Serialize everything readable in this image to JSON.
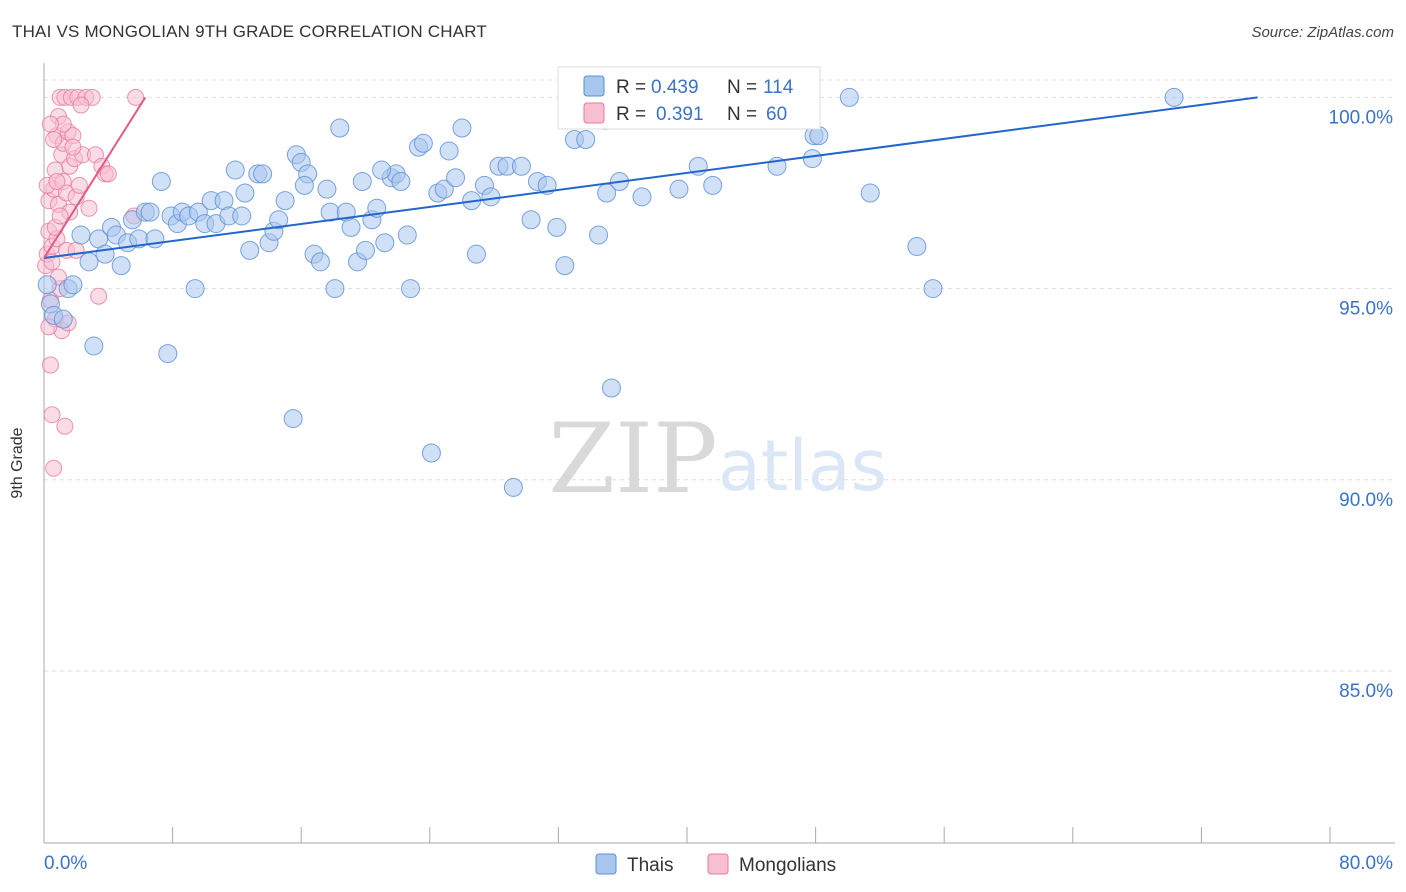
{
  "header": {
    "title": "THAI VS MONGOLIAN 9TH GRADE CORRELATION CHART",
    "source": "Source: ZipAtlas.com"
  },
  "watermark": {
    "zip": "ZIP",
    "atlas": "atlas"
  },
  "colors": {
    "thais": "#5b8fd6",
    "thais_fill": "#a9c6ee",
    "thais_line": "#2266cc",
    "mongolians": "#e87aa0",
    "mongolians_fill": "#f6bfd2",
    "mongolians_line": "#e05a8a",
    "tick_label": "#3a72c8",
    "grid": "#dddddd"
  },
  "legend_top": [
    {
      "r_label": "R = ",
      "r_value": "0.439",
      "n_label": "N = ",
      "n_value": "114"
    },
    {
      "r_label": "R = ",
      "r_value": "0.391",
      "n_label": "N = ",
      "n_value": "60"
    }
  ],
  "chart_data": {
    "type": "scatter",
    "title": "THAI VS MONGOLIAN 9TH GRADE CORRELATION CHART",
    "xlabel": "",
    "ylabel": "9th Grade",
    "xlim": [
      0,
      80
    ],
    "ylim": [
      80.5,
      100.9
    ],
    "x_tick_labels": [
      "0.0%",
      "80.0%"
    ],
    "y_ticks": [
      85,
      90,
      95,
      100
    ],
    "y_tick_labels": [
      "85.0%",
      "90.0%",
      "95.0%",
      "100.0%"
    ],
    "grid": true,
    "legend_position": "bottom-center",
    "series": [
      {
        "name": "Thais",
        "R": 0.439,
        "N": 114,
        "trend": {
          "x": [
            0,
            75.5
          ],
          "y": [
            95.8,
            100.0
          ]
        },
        "points": [
          [
            0.2,
            95.1
          ],
          [
            0.4,
            94.6
          ],
          [
            0.6,
            94.3
          ],
          [
            1.2,
            94.2
          ],
          [
            1.5,
            95.0
          ],
          [
            1.8,
            95.1
          ],
          [
            2.3,
            96.4
          ],
          [
            2.8,
            95.7
          ],
          [
            3.1,
            93.5
          ],
          [
            3.4,
            96.3
          ],
          [
            3.8,
            95.9
          ],
          [
            4.2,
            96.6
          ],
          [
            4.5,
            96.4
          ],
          [
            4.8,
            95.6
          ],
          [
            5.2,
            96.2
          ],
          [
            5.5,
            96.8
          ],
          [
            5.9,
            96.3
          ],
          [
            6.3,
            97.0
          ],
          [
            6.6,
            97.0
          ],
          [
            6.9,
            96.3
          ],
          [
            7.3,
            97.8
          ],
          [
            7.7,
            93.3
          ],
          [
            7.9,
            96.9
          ],
          [
            8.3,
            96.7
          ],
          [
            8.6,
            97.0
          ],
          [
            9.0,
            96.9
          ],
          [
            9.4,
            95.0
          ],
          [
            9.6,
            97.0
          ],
          [
            10.0,
            96.7
          ],
          [
            10.4,
            97.3
          ],
          [
            10.7,
            96.7
          ],
          [
            11.2,
            97.3
          ],
          [
            11.5,
            96.9
          ],
          [
            11.9,
            98.1
          ],
          [
            12.3,
            96.9
          ],
          [
            12.5,
            97.5
          ],
          [
            12.8,
            96.0
          ],
          [
            13.3,
            98.0
          ],
          [
            13.6,
            98.0
          ],
          [
            14.0,
            96.2
          ],
          [
            14.3,
            96.5
          ],
          [
            14.6,
            96.8
          ],
          [
            15.0,
            97.3
          ],
          [
            15.5,
            91.6
          ],
          [
            15.7,
            98.5
          ],
          [
            16.0,
            98.3
          ],
          [
            16.4,
            98.0
          ],
          [
            16.8,
            95.9
          ],
          [
            17.2,
            95.7
          ],
          [
            17.6,
            97.6
          ],
          [
            17.8,
            97.0
          ],
          [
            18.1,
            95.0
          ],
          [
            18.4,
            99.2
          ],
          [
            18.8,
            97.0
          ],
          [
            19.1,
            96.6
          ],
          [
            19.5,
            95.7
          ],
          [
            19.8,
            97.8
          ],
          [
            20.0,
            96.0
          ],
          [
            20.4,
            96.8
          ],
          [
            20.7,
            97.1
          ],
          [
            21.2,
            96.2
          ],
          [
            21.6,
            97.9
          ],
          [
            21.9,
            98.0
          ],
          [
            22.2,
            97.8
          ],
          [
            22.6,
            96.4
          ],
          [
            22.8,
            95.0
          ],
          [
            23.3,
            98.7
          ],
          [
            23.6,
            98.8
          ],
          [
            24.1,
            90.7
          ],
          [
            24.5,
            97.5
          ],
          [
            24.9,
            97.6
          ],
          [
            25.2,
            98.6
          ],
          [
            25.6,
            97.9
          ],
          [
            26.0,
            99.2
          ],
          [
            26.6,
            97.3
          ],
          [
            26.9,
            95.9
          ],
          [
            27.4,
            97.7
          ],
          [
            27.8,
            97.4
          ],
          [
            28.3,
            98.2
          ],
          [
            28.8,
            98.2
          ],
          [
            29.2,
            89.8
          ],
          [
            29.7,
            98.2
          ],
          [
            30.3,
            96.8
          ],
          [
            30.7,
            97.8
          ],
          [
            31.3,
            97.7
          ],
          [
            31.9,
            96.6
          ],
          [
            32.4,
            95.6
          ],
          [
            33.0,
            98.9
          ],
          [
            33.7,
            98.9
          ],
          [
            34.5,
            96.4
          ],
          [
            34.9,
            99.4
          ],
          [
            35.3,
            92.4
          ],
          [
            35.8,
            97.8
          ],
          [
            36.4,
            100.0
          ],
          [
            37.2,
            97.4
          ],
          [
            37.9,
            100.0
          ],
          [
            38.6,
            99.6
          ],
          [
            39.5,
            97.6
          ],
          [
            40.7,
            98.2
          ],
          [
            41.6,
            97.7
          ],
          [
            44.3,
            100.0
          ],
          [
            45.6,
            98.2
          ],
          [
            47.4,
            100.0
          ],
          [
            47.8,
            98.4
          ],
          [
            47.9,
            99.0
          ],
          [
            48.2,
            99.0
          ],
          [
            50.1,
            100.0
          ],
          [
            51.4,
            97.5
          ],
          [
            54.3,
            96.1
          ],
          [
            55.3,
            95.0
          ],
          [
            70.3,
            100.0
          ],
          [
            35.0,
            97.5
          ],
          [
            21.0,
            98.1
          ],
          [
            16.2,
            97.7
          ]
        ]
      },
      {
        "name": "Mongolians",
        "R": 0.391,
        "N": 60,
        "trend": {
          "x": [
            0,
            6.3
          ],
          "y": [
            95.8,
            100.0
          ]
        },
        "points": [
          [
            0.1,
            95.6
          ],
          [
            0.2,
            95.9
          ],
          [
            0.3,
            96.5
          ],
          [
            0.3,
            97.3
          ],
          [
            0.4,
            93.0
          ],
          [
            0.4,
            94.7
          ],
          [
            0.5,
            96.1
          ],
          [
            0.5,
            91.7
          ],
          [
            0.6,
            97.6
          ],
          [
            0.6,
            90.3
          ],
          [
            0.7,
            98.1
          ],
          [
            0.7,
            94.2
          ],
          [
            0.8,
            99.0
          ],
          [
            0.8,
            96.3
          ],
          [
            0.9,
            99.5
          ],
          [
            0.9,
            97.2
          ],
          [
            1.0,
            100.0
          ],
          [
            1.0,
            95.0
          ],
          [
            1.1,
            98.5
          ],
          [
            1.1,
            93.9
          ],
          [
            1.2,
            97.8
          ],
          [
            1.2,
            98.8
          ],
          [
            1.3,
            100.0
          ],
          [
            1.3,
            91.4
          ],
          [
            1.4,
            97.5
          ],
          [
            1.4,
            96.0
          ],
          [
            1.5,
            99.1
          ],
          [
            1.6,
            98.2
          ],
          [
            1.6,
            97.0
          ],
          [
            1.7,
            100.0
          ],
          [
            1.8,
            99.0
          ],
          [
            1.9,
            98.4
          ],
          [
            2.0,
            97.4
          ],
          [
            2.1,
            100.0
          ],
          [
            2.2,
            97.7
          ],
          [
            2.4,
            98.5
          ],
          [
            2.6,
            100.0
          ],
          [
            2.8,
            97.1
          ],
          [
            3.0,
            100.0
          ],
          [
            3.2,
            98.5
          ],
          [
            3.4,
            94.8
          ],
          [
            3.6,
            98.2
          ],
          [
            3.8,
            98.0
          ],
          [
            4.0,
            98.0
          ],
          [
            0.2,
            97.7
          ],
          [
            0.3,
            94.0
          ],
          [
            0.5,
            95.7
          ],
          [
            0.6,
            98.9
          ],
          [
            0.7,
            96.6
          ],
          [
            0.9,
            95.3
          ],
          [
            1.0,
            96.9
          ],
          [
            1.2,
            99.3
          ],
          [
            1.5,
            94.1
          ],
          [
            1.8,
            98.7
          ],
          [
            2.0,
            96.0
          ],
          [
            2.3,
            99.8
          ],
          [
            0.4,
            99.3
          ],
          [
            0.8,
            97.8
          ],
          [
            5.6,
            96.9
          ],
          [
            5.7,
            100.0
          ]
        ]
      }
    ]
  }
}
